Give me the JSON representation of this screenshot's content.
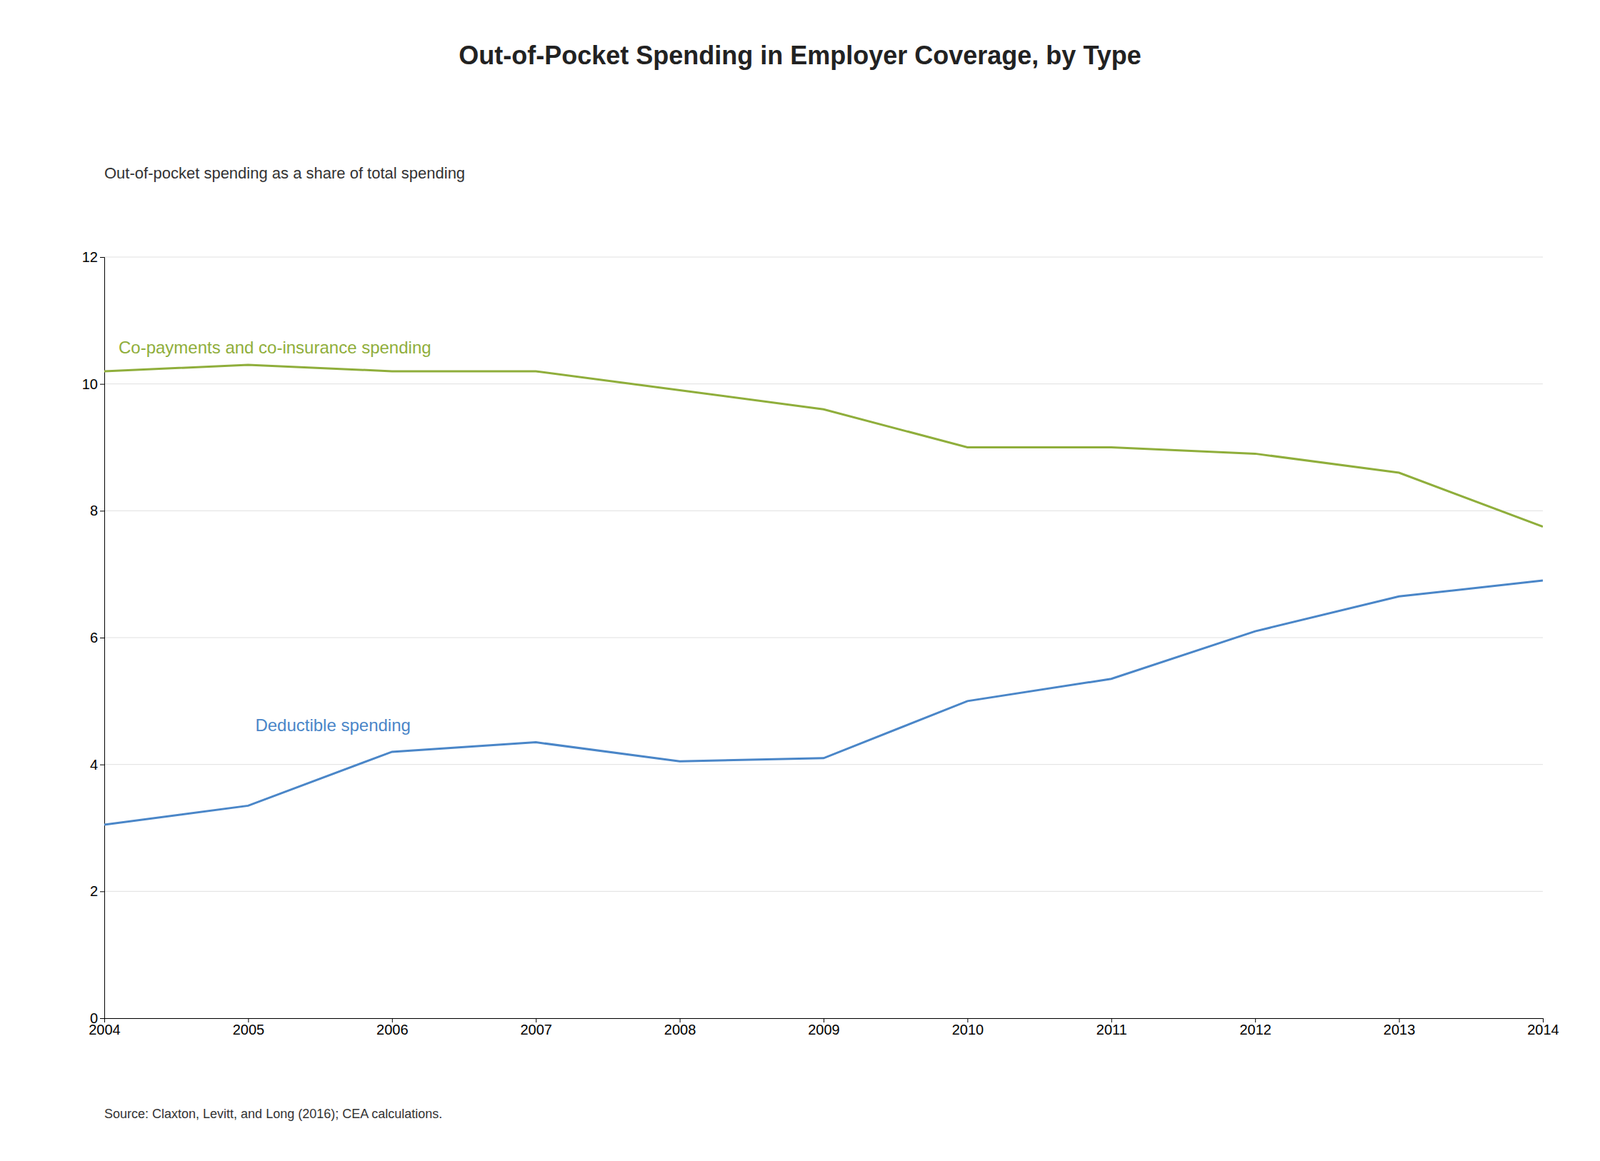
{
  "chart_data": {
    "type": "line",
    "title": "Out-of-Pocket Spending in Employer Coverage, by Type",
    "subtitle": "Out-of-pocket spending as a share of total spending",
    "source": "Source: Claxton, Levitt, and Long (2016); CEA calculations.",
    "x": [
      2004,
      2005,
      2006,
      2007,
      2008,
      2009,
      2010,
      2011,
      2012,
      2013,
      2014
    ],
    "series": [
      {
        "name": "Co-payments and co-insurance spending",
        "color": "#8fae3b",
        "values": [
          10.2,
          10.3,
          10.2,
          10.2,
          9.9,
          9.6,
          9.0,
          9.0,
          8.9,
          8.6,
          7.75
        ]
      },
      {
        "name": "Deductible spending",
        "color": "#4a86c8",
        "values": [
          3.05,
          3.35,
          4.2,
          4.35,
          4.05,
          4.1,
          5.0,
          5.35,
          6.1,
          6.65,
          6.9
        ]
      }
    ],
    "xlim": [
      2004,
      2014
    ],
    "xticks": [
      2004,
      2005,
      2006,
      2007,
      2008,
      2009,
      2010,
      2011,
      2012,
      2013,
      2014
    ],
    "ylim": [
      0,
      12
    ],
    "yticks": [
      0,
      2,
      4,
      6,
      8,
      10,
      12
    ],
    "grid": true
  }
}
